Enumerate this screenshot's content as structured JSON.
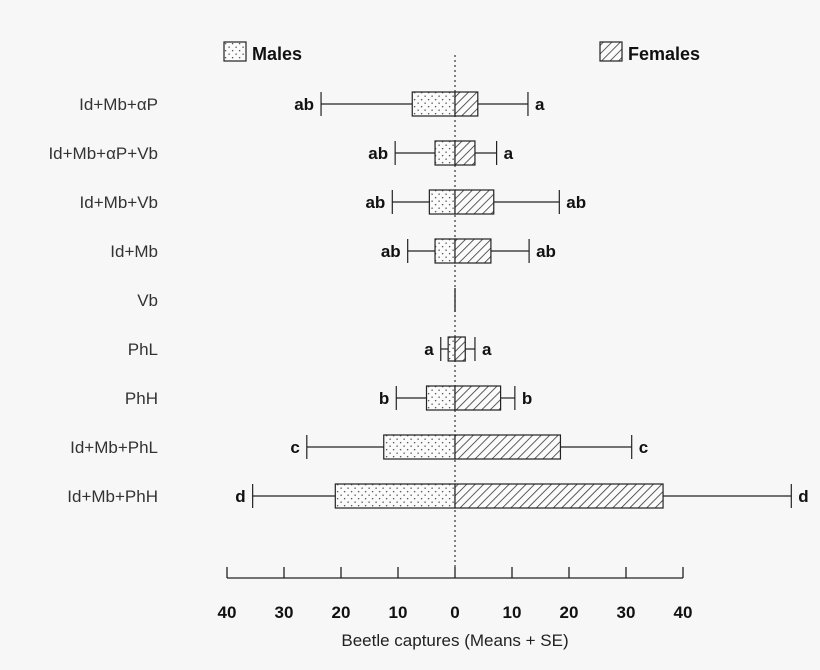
{
  "chart_data": {
    "type": "bar",
    "orientation": "horizontal-back-to-back",
    "xlabel": "Beetle captures (Means + SE)",
    "xlim": [
      -40,
      40
    ],
    "x_ticks": [
      -40,
      -30,
      -20,
      -10,
      0,
      10,
      20,
      30,
      40
    ],
    "x_tick_labels": [
      "40",
      "30",
      "20",
      "10",
      "0",
      "10",
      "20",
      "30",
      "40"
    ],
    "legend": {
      "position": "top",
      "males_label": "Males",
      "females_label": "Females"
    },
    "categories": [
      "Id+Mb+αP",
      "Id+Mb+αP+Vb",
      "Id+Mb+Vb",
      "Id+Mb",
      "Vb",
      "PhL",
      "PhH",
      "Id+Mb+PhL",
      "Id+Mb+PhH"
    ],
    "series": [
      {
        "name": "Males",
        "pattern": "dotted",
        "values": [
          7.5,
          3.5,
          4.5,
          3.5,
          0,
          1.2,
          5,
          12.5,
          21
        ],
        "se": [
          16,
          7,
          6.5,
          4.8,
          0,
          1.3,
          5.3,
          13.5,
          14.5
        ],
        "letters": [
          "ab",
          "ab",
          "ab",
          "ab",
          "",
          "a",
          "b",
          "c",
          "d"
        ]
      },
      {
        "name": "Females",
        "pattern": "hatched",
        "values": [
          4,
          3.5,
          6.8,
          6.3,
          0,
          1.8,
          8,
          18.5,
          36.5
        ],
        "se": [
          8.8,
          3.8,
          11.5,
          6.7,
          0,
          1.7,
          2.5,
          12.5,
          22.5
        ],
        "letters": [
          "a",
          "a",
          "ab",
          "ab",
          "",
          "a",
          "b",
          "c",
          "d"
        ]
      }
    ]
  }
}
